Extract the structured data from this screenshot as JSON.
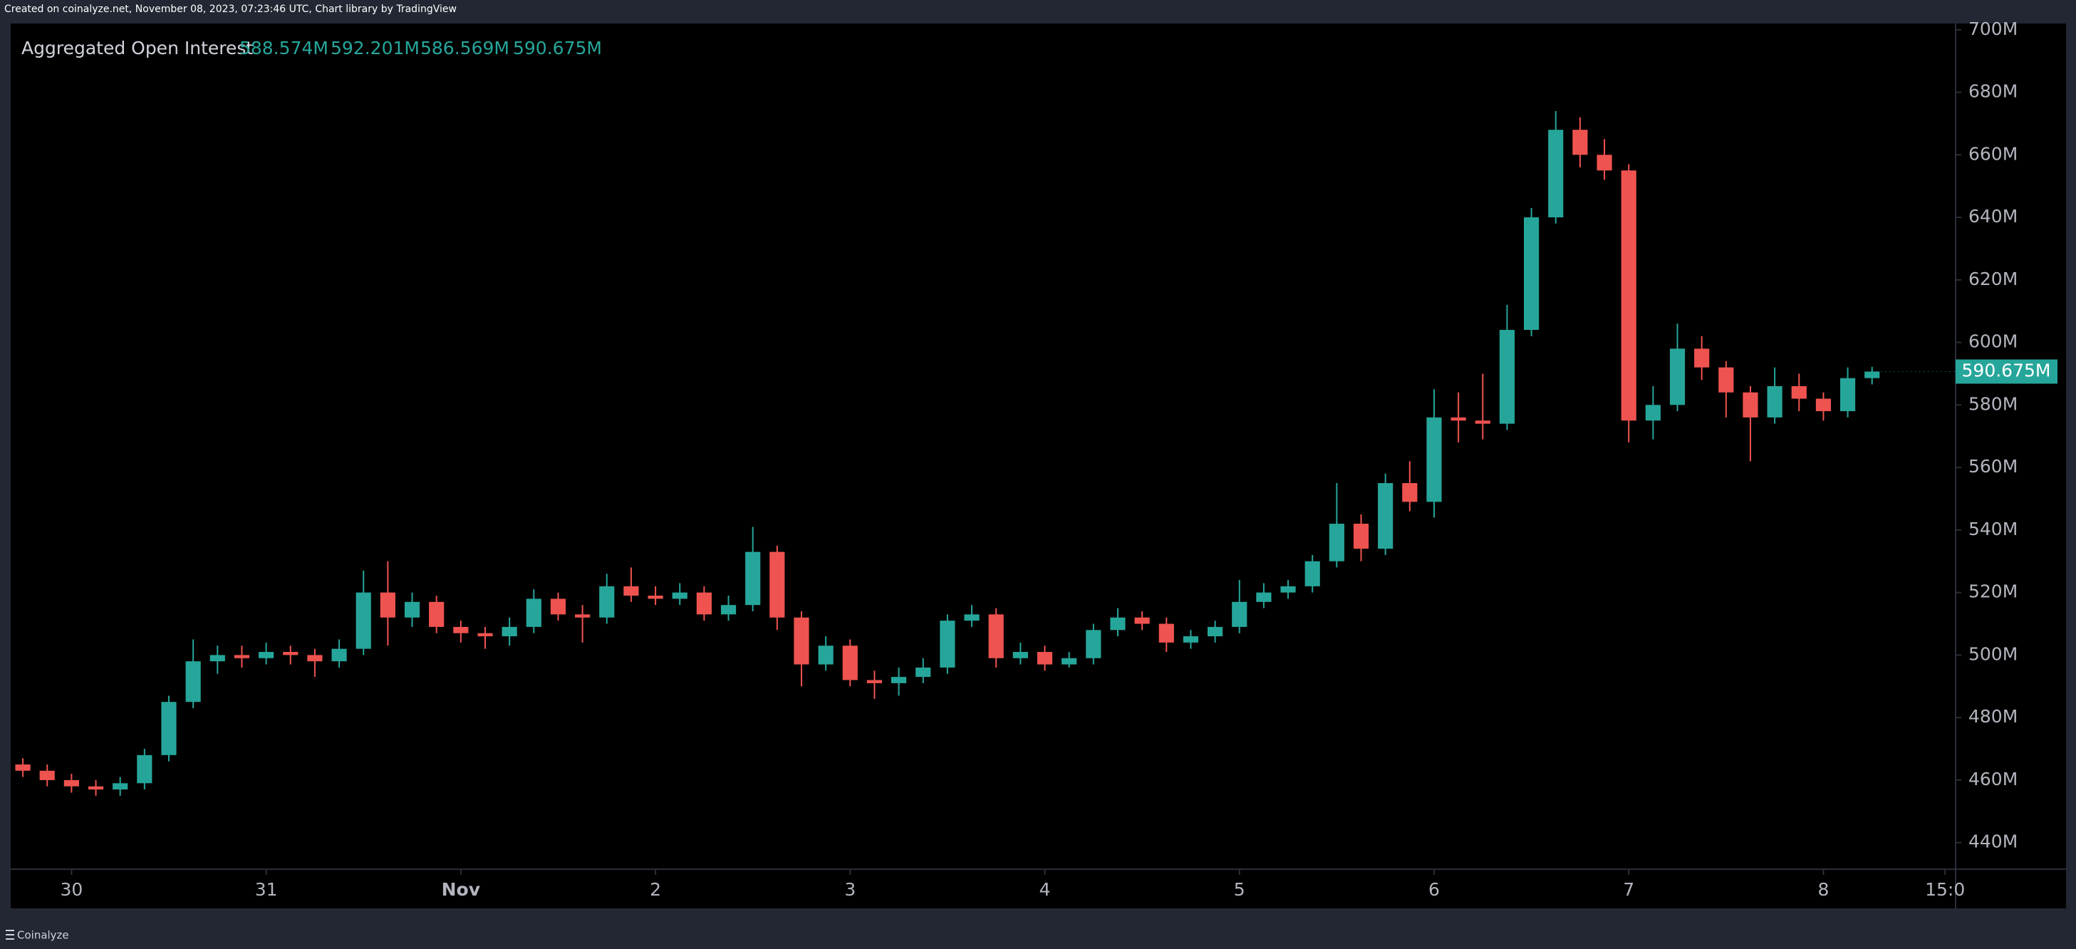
{
  "credit": "Created on coinalyze.net, November 08, 2023, 07:23:46 UTC, Chart library by TradingView",
  "footer": "Coinalyze",
  "chart_data": {
    "type": "candlestick",
    "title": "Aggregated Open Interest",
    "ohlc_labels": [
      "588.574M",
      "592.201M",
      "586.569M",
      "590.675M"
    ],
    "up_color": "#26a69a",
    "down_color": "#ef5350",
    "x": [
      -6,
      -3,
      0,
      3,
      6,
      9,
      12,
      15,
      18,
      21,
      24,
      27,
      30,
      33,
      36,
      39,
      42,
      45,
      48,
      51,
      54,
      57,
      60,
      63,
      66,
      69,
      72,
      75,
      78,
      81,
      84,
      87,
      90,
      93,
      96,
      99,
      102,
      105,
      108,
      111,
      114,
      117,
      120,
      123,
      126,
      129,
      132,
      135,
      138,
      141,
      144,
      147,
      150,
      153,
      156,
      159,
      162,
      165,
      168,
      171,
      174,
      177,
      180,
      183,
      186,
      189,
      192,
      195,
      198,
      201,
      204,
      207,
      210,
      213,
      216,
      219,
      222
    ],
    "open": [
      465,
      463,
      460,
      458,
      457,
      459,
      468,
      485,
      498,
      500,
      499,
      501,
      500,
      498,
      502,
      520,
      512,
      517,
      509,
      507,
      506,
      509,
      518,
      513,
      512,
      522,
      519,
      518,
      520,
      513,
      516,
      533,
      512,
      497,
      503,
      492,
      491,
      493,
      496,
      511,
      513,
      499,
      501,
      497,
      499,
      508,
      512,
      510,
      504,
      506,
      509,
      517,
      520,
      522,
      530,
      542,
      534,
      555,
      549,
      576,
      575,
      574,
      604,
      640,
      668,
      660,
      655,
      575,
      580,
      598,
      592,
      584,
      576,
      586,
      582,
      578,
      588.574
    ],
    "high": [
      467,
      465,
      462,
      460,
      461,
      470,
      487,
      505,
      503,
      503,
      504,
      503,
      502,
      505,
      527,
      530,
      520,
      519,
      511,
      509,
      512,
      521,
      520,
      516,
      526,
      528,
      522,
      523,
      522,
      519,
      541,
      535,
      514,
      506,
      505,
      495,
      496,
      499,
      513,
      516,
      515,
      504,
      503,
      501,
      510,
      515,
      514,
      512,
      508,
      511,
      524,
      523,
      524,
      532,
      555,
      545,
      558,
      562,
      585,
      584,
      590,
      612,
      643,
      674,
      672,
      665,
      657,
      586,
      606,
      602,
      594,
      586,
      592,
      590,
      584,
      592,
      592.201
    ],
    "low": [
      461,
      458,
      456,
      455,
      455,
      457,
      466,
      483,
      494,
      496,
      497,
      497,
      493,
      496,
      500,
      503,
      509,
      507,
      504,
      502,
      503,
      507,
      511,
      504,
      510,
      517,
      516,
      516,
      511,
      511,
      514,
      508,
      490,
      495,
      490,
      486,
      487,
      491,
      494,
      509,
      496,
      497,
      495,
      496,
      497,
      506,
      508,
      501,
      502,
      504,
      507,
      515,
      518,
      520,
      528,
      530,
      532,
      546,
      544,
      568,
      569,
      572,
      602,
      638,
      656,
      652,
      568,
      569,
      578,
      588,
      576,
      562,
      574,
      578,
      575,
      576,
      586.569
    ],
    "close": [
      463,
      460,
      458,
      457,
      459,
      468,
      485,
      498,
      500,
      499,
      501,
      500,
      498,
      502,
      520,
      512,
      517,
      509,
      507,
      506,
      509,
      518,
      513,
      512,
      522,
      519,
      518,
      520,
      513,
      516,
      533,
      512,
      497,
      503,
      492,
      491,
      493,
      496,
      511,
      513,
      499,
      501,
      497,
      499,
      508,
      512,
      510,
      504,
      506,
      509,
      517,
      520,
      522,
      530,
      542,
      534,
      555,
      549,
      576,
      575,
      574,
      604,
      640,
      668,
      660,
      655,
      575,
      580,
      598,
      592,
      584,
      576,
      586,
      582,
      578,
      588.574,
      590.675
    ],
    "xlim": [
      -7.5,
      232.3
    ],
    "xticks": [
      {
        "value": 0,
        "label": "30"
      },
      {
        "value": 24,
        "label": "31"
      },
      {
        "value": 48,
        "label": "Nov"
      },
      {
        "value": 72,
        "label": "2"
      },
      {
        "value": 96,
        "label": "3"
      },
      {
        "value": 120,
        "label": "4"
      },
      {
        "value": 144,
        "label": "5"
      },
      {
        "value": 168,
        "label": "6"
      },
      {
        "value": 192,
        "label": "7"
      },
      {
        "value": 216,
        "label": "8"
      },
      {
        "value": 231,
        "label": "15:0"
      }
    ],
    "ylim": [
      431.5,
      702
    ],
    "yticks": [
      {
        "value": 440,
        "label": "440M"
      },
      {
        "value": 460,
        "label": "460M"
      },
      {
        "value": 480,
        "label": "480M"
      },
      {
        "value": 500,
        "label": "500M"
      },
      {
        "value": 520,
        "label": "520M"
      },
      {
        "value": 540,
        "label": "540M"
      },
      {
        "value": 560,
        "label": "560M"
      },
      {
        "value": 580,
        "label": "580M"
      },
      {
        "value": 600,
        "label": "600M"
      },
      {
        "value": 620,
        "label": "620M"
      },
      {
        "value": 640,
        "label": "640M"
      },
      {
        "value": 660,
        "label": "660M"
      },
      {
        "value": 680,
        "label": "680M"
      },
      {
        "value": 700,
        "label": "700M"
      }
    ],
    "grid": false
  }
}
